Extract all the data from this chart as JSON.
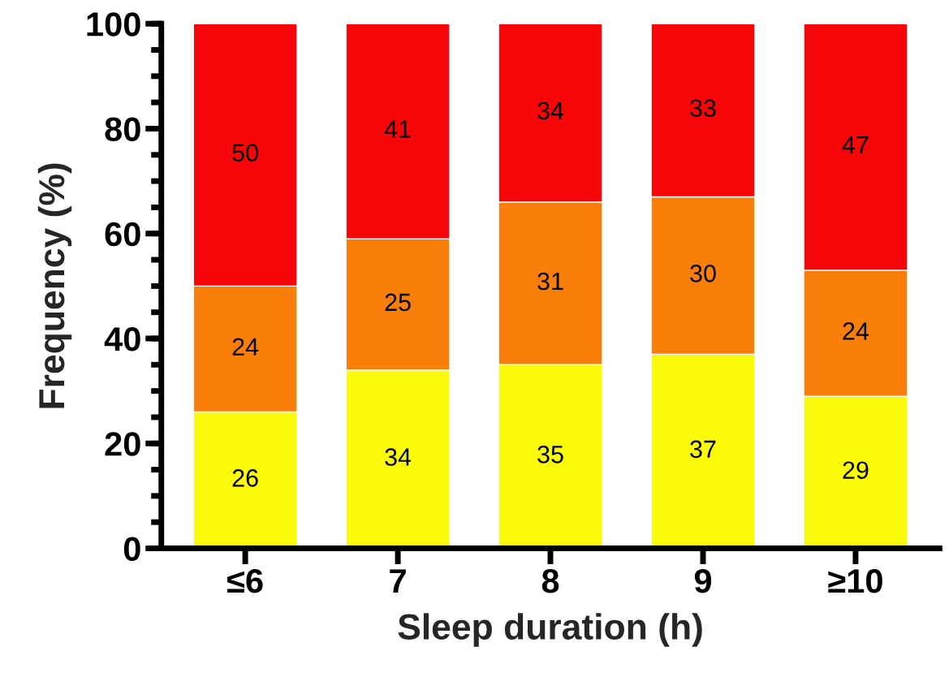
{
  "chart_data": {
    "type": "bar",
    "stacked": true,
    "xlabel": "Sleep duration (h)",
    "ylabel": "Frequency (%)",
    "categories": [
      "≤6",
      "7",
      "8",
      "9",
      "≥10"
    ],
    "series": [
      {
        "color": "#fafa0a",
        "values": [
          26,
          34,
          35,
          37,
          29
        ]
      },
      {
        "color": "#f97f0a",
        "values": [
          24,
          25,
          31,
          30,
          24
        ]
      },
      {
        "color": "#f60509",
        "values": [
          50,
          41,
          34,
          33,
          47
        ]
      }
    ],
    "ylim": [
      0,
      100
    ],
    "yticks": [
      0,
      20,
      40,
      60,
      80,
      100
    ],
    "data_labels": true,
    "grid": false,
    "legend": false
  }
}
